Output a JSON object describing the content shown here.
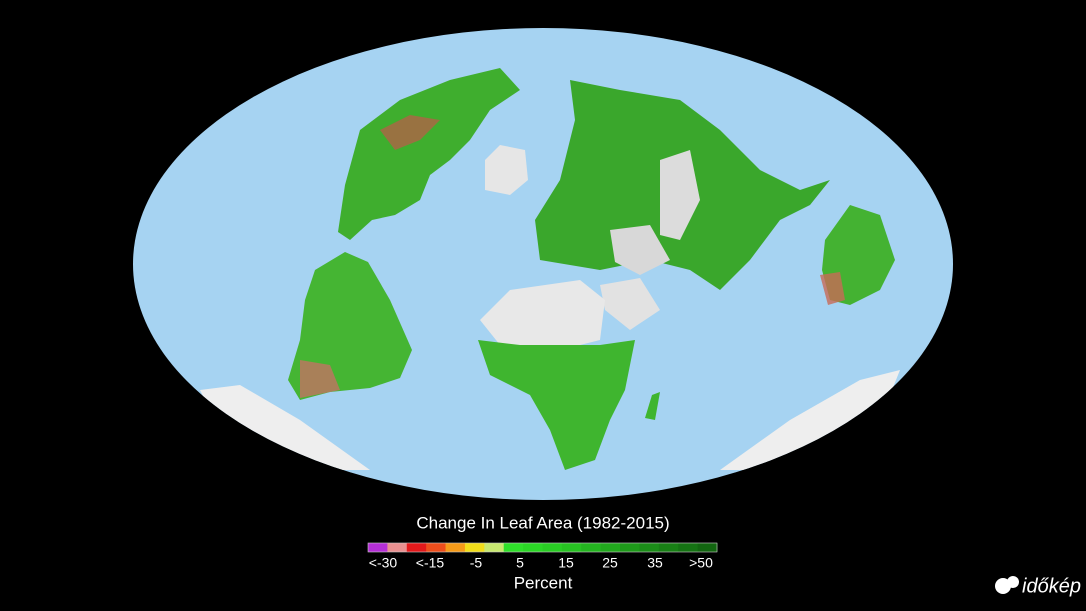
{
  "legend": {
    "title": "Change In Leaf Area (1982-2015)",
    "labels": [
      "<-30",
      "<-15",
      "-5",
      "5",
      "15",
      "25",
      "35",
      ">50"
    ],
    "unit": "Percent"
  },
  "logo": "időkép"
}
